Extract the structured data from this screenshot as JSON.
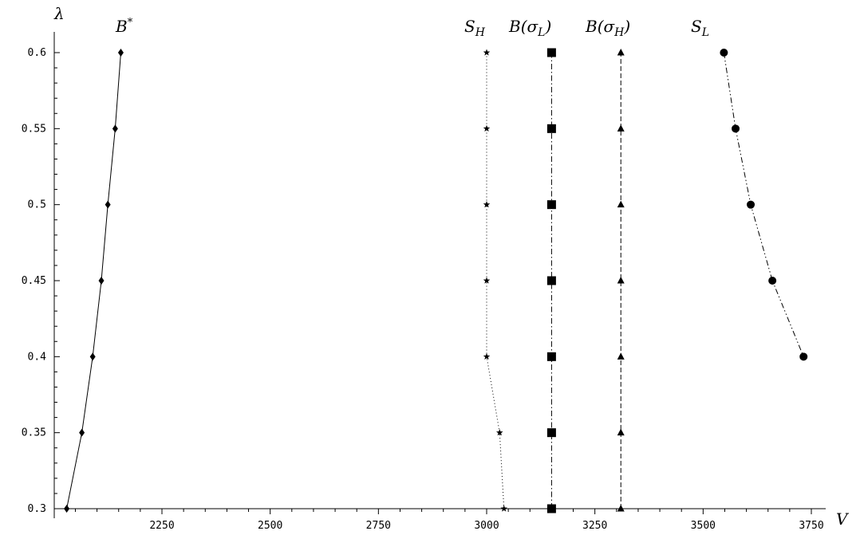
{
  "chart_data": {
    "type": "line",
    "xlabel": "V",
    "ylabel": "λ",
    "xlim": [
      2000,
      3780
    ],
    "ylim": [
      0.3,
      0.6
    ],
    "xticks": [
      2250,
      2500,
      2750,
      3000,
      3250,
      3500,
      3750
    ],
    "yticks": [
      0.3,
      0.35,
      0.4,
      0.45,
      0.5,
      0.55,
      0.6
    ],
    "grid": false,
    "series": [
      {
        "name": "B*",
        "label_main": "B",
        "label_sup": "*",
        "marker": "diamond",
        "line": "solid",
        "points": [
          [
            2030,
            0.3
          ],
          [
            2065,
            0.35
          ],
          [
            2090,
            0.4
          ],
          [
            2110,
            0.45
          ],
          [
            2125,
            0.5
          ],
          [
            2142,
            0.55
          ],
          [
            2155,
            0.6
          ]
        ]
      },
      {
        "name": "S_H",
        "label_main": "S",
        "label_sub": "H",
        "marker": "star",
        "line": "dotted",
        "points": [
          [
            3040,
            0.3
          ],
          [
            3030,
            0.35
          ],
          [
            3000,
            0.4
          ],
          [
            3000,
            0.45
          ],
          [
            3000,
            0.5
          ],
          [
            3000,
            0.55
          ],
          [
            3000,
            0.6
          ]
        ]
      },
      {
        "name": "B(σ_L)",
        "label_main": "B(σ",
        "label_sub": "L",
        "label_end": ")",
        "marker": "square",
        "line": "dashdot",
        "points": [
          [
            3150,
            0.3
          ],
          [
            3150,
            0.35
          ],
          [
            3150,
            0.4
          ],
          [
            3150,
            0.45
          ],
          [
            3150,
            0.5
          ],
          [
            3150,
            0.55
          ],
          [
            3150,
            0.6
          ]
        ]
      },
      {
        "name": "B(σ_H)",
        "label_main": "B(σ",
        "label_sub": "H",
        "label_end": ")",
        "marker": "triangle",
        "line": "dashed",
        "points": [
          [
            3310,
            0.3
          ],
          [
            3310,
            0.35
          ],
          [
            3310,
            0.4
          ],
          [
            3310,
            0.45
          ],
          [
            3310,
            0.5
          ],
          [
            3310,
            0.55
          ],
          [
            3310,
            0.6
          ]
        ]
      },
      {
        "name": "S_L",
        "label_main": "S",
        "label_sub": "L",
        "marker": "circle",
        "line": "dashdotdot",
        "points": [
          [
            3548,
            0.6
          ],
          [
            3575,
            0.55
          ],
          [
            3610,
            0.5
          ],
          [
            3660,
            0.45
          ],
          [
            3732,
            0.4
          ]
        ]
      }
    ]
  }
}
